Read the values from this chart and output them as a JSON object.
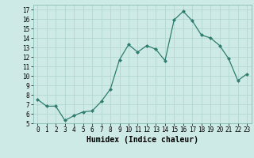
{
  "title": "",
  "xlabel": "Humidex (Indice chaleur)",
  "ylabel": "",
  "x": [
    0,
    1,
    2,
    3,
    4,
    5,
    6,
    7,
    8,
    9,
    10,
    11,
    12,
    13,
    14,
    15,
    16,
    17,
    18,
    19,
    20,
    21,
    22,
    23
  ],
  "y": [
    7.5,
    6.8,
    6.8,
    5.3,
    5.8,
    6.2,
    6.3,
    7.3,
    8.6,
    11.7,
    13.3,
    12.5,
    13.2,
    12.8,
    11.6,
    15.9,
    16.8,
    15.8,
    14.3,
    14.0,
    13.2,
    11.8,
    9.5,
    10.2
  ],
  "line_color": "#2e7d6e",
  "marker": "D",
  "marker_size": 2.0,
  "bg_color": "#ceeae6",
  "grid_color": "#aed4ce",
  "xlim": [
    -0.5,
    23.5
  ],
  "ylim": [
    5,
    17.5
  ],
  "yticks": [
    5,
    6,
    7,
    8,
    9,
    10,
    11,
    12,
    13,
    14,
    15,
    16,
    17
  ],
  "xticks": [
    0,
    1,
    2,
    3,
    4,
    5,
    6,
    7,
    8,
    9,
    10,
    11,
    12,
    13,
    14,
    15,
    16,
    17,
    18,
    19,
    20,
    21,
    22,
    23
  ],
  "tick_fontsize": 5.5,
  "xlabel_fontsize": 7.0,
  "linewidth": 0.9
}
